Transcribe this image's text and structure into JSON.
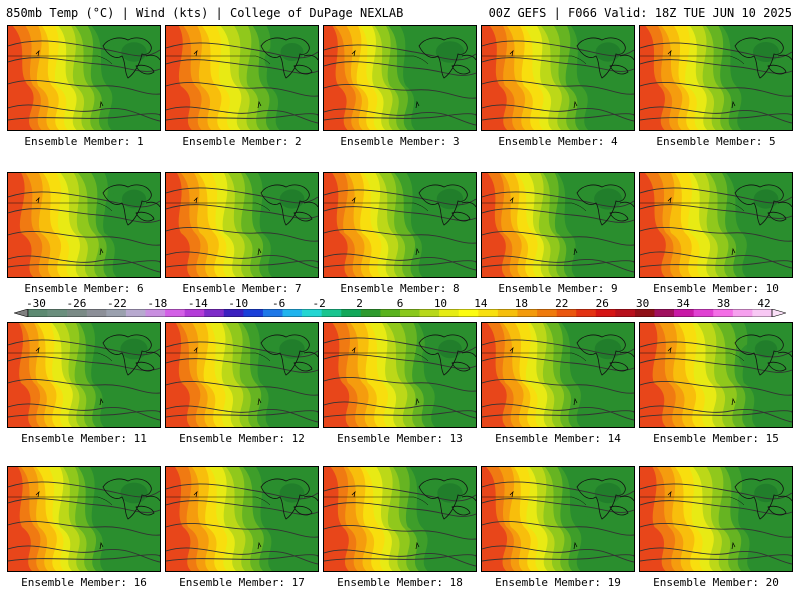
{
  "header": {
    "left": "850mb Temp (°C) | Wind (kts) | College of DuPage NEXLAB",
    "right": "00Z GEFS | F066 Valid: 18Z TUE JUN 10 2025"
  },
  "colorbar": {
    "tick_labels": [
      "-30",
      "-26",
      "-22",
      "-18",
      "-14",
      "-10",
      "-6",
      "-2",
      "2",
      "6",
      "10",
      "14",
      "18",
      "22",
      "26",
      "30",
      "34",
      "38",
      "42"
    ],
    "colors": [
      "#5d8a72",
      "#6b8f7e",
      "#7a8a86",
      "#8c8f98",
      "#9aa0ae",
      "#b7a9cf",
      "#c98fe0",
      "#d35fe6",
      "#b43cd8",
      "#7d2bc9",
      "#3b1fbf",
      "#1a3fd9",
      "#1e78e8",
      "#20b4ee",
      "#23d6d2",
      "#19c590",
      "#12a85a",
      "#2e9a2e",
      "#5ab21e",
      "#8ac81c",
      "#b8d81a",
      "#e6ec14",
      "#fcfc10",
      "#f8e00e",
      "#f6bf0c",
      "#f39a0c",
      "#ef7a0c",
      "#ea560e",
      "#e33212",
      "#d51414",
      "#b8101c",
      "#901018",
      "#a0105e",
      "#c818a6",
      "#e040d2",
      "#f46ee6",
      "#f6a0ee",
      "#f8c8f4"
    ]
  },
  "members": [
    {
      "label": "Ensemble Member: 1",
      "warm": 0.55
    },
    {
      "label": "Ensemble Member: 2",
      "warm": 0.75
    },
    {
      "label": "Ensemble Member: 3",
      "warm": 0.3
    },
    {
      "label": "Ensemble Member: 4",
      "warm": 0.6
    },
    {
      "label": "Ensemble Member: 5",
      "warm": 0.5
    },
    {
      "label": "Ensemble Member: 6",
      "warm": 0.65
    },
    {
      "label": "Ensemble Member: 7",
      "warm": 0.6
    },
    {
      "label": "Ensemble Member: 8",
      "warm": 0.45
    },
    {
      "label": "Ensemble Member: 9",
      "warm": 0.35
    },
    {
      "label": "Ensemble Member: 10",
      "warm": 0.6
    },
    {
      "label": "Ensemble Member: 11",
      "warm": 0.4
    },
    {
      "label": "Ensemble Member: 12",
      "warm": 0.55
    },
    {
      "label": "Ensemble Member: 13",
      "warm": 0.7
    },
    {
      "label": "Ensemble Member: 14",
      "warm": 0.45
    },
    {
      "label": "Ensemble Member: 15",
      "warm": 0.8
    },
    {
      "label": "Ensemble Member: 16",
      "warm": 0.4
    },
    {
      "label": "Ensemble Member: 17",
      "warm": 0.6
    },
    {
      "label": "Ensemble Member: 18",
      "warm": 0.55
    },
    {
      "label": "Ensemble Member: 19",
      "warm": 0.45
    },
    {
      "label": "Ensemble Member: 20",
      "warm": 0.7
    }
  ]
}
